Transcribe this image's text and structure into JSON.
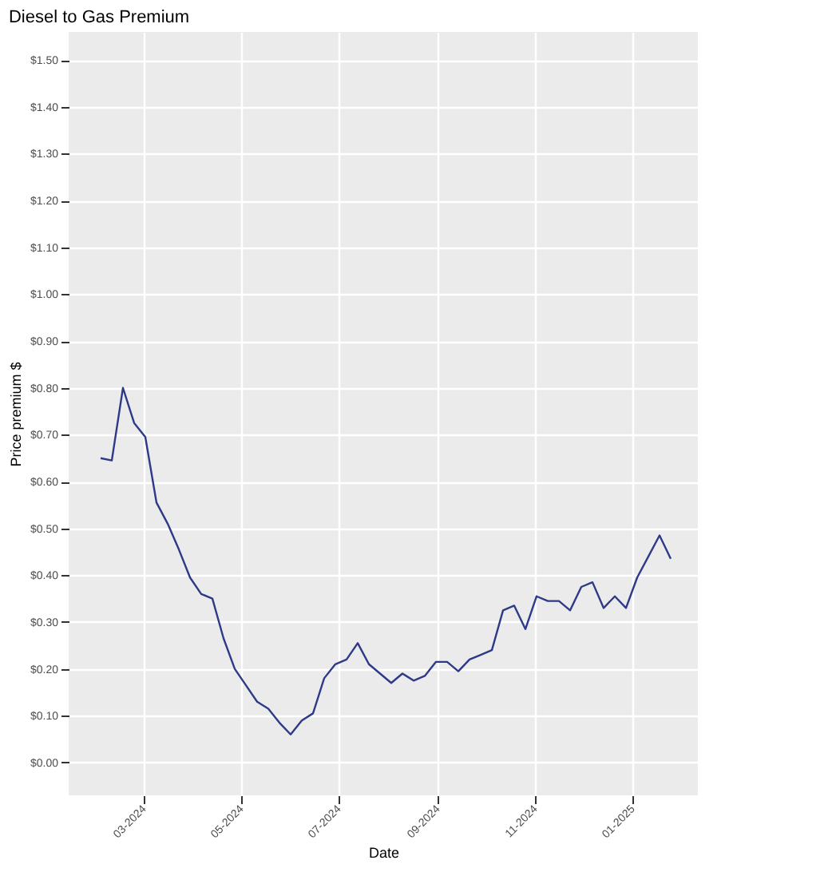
{
  "chart_data": {
    "type": "line",
    "title": "Diesel to Gas Premium",
    "xlabel": "Date",
    "ylabel": "Price premium $",
    "x": [
      "2024-02-03",
      "2024-02-10",
      "2024-02-17",
      "2024-02-24",
      "2024-03-02",
      "2024-03-09",
      "2024-03-16",
      "2024-03-23",
      "2024-03-30",
      "2024-04-06",
      "2024-04-13",
      "2024-04-20",
      "2024-04-27",
      "2024-05-04",
      "2024-05-11",
      "2024-05-18",
      "2024-05-25",
      "2024-06-01",
      "2024-06-08",
      "2024-06-15",
      "2024-06-22",
      "2024-06-29",
      "2024-07-06",
      "2024-07-13",
      "2024-07-20",
      "2024-07-27",
      "2024-08-03",
      "2024-08-10",
      "2024-08-17",
      "2024-08-24",
      "2024-08-31",
      "2024-09-07",
      "2024-09-14",
      "2024-09-21",
      "2024-09-28",
      "2024-10-05",
      "2024-10-12",
      "2024-10-19",
      "2024-10-26",
      "2024-11-02",
      "2024-11-09",
      "2024-11-16",
      "2024-11-23",
      "2024-11-30",
      "2024-12-07",
      "2024-12-14",
      "2024-12-21",
      "2024-12-28",
      "2025-01-04",
      "2025-01-11",
      "2025-01-18",
      "2025-01-25"
    ],
    "series": [
      {
        "color": "#2e3a87",
        "values": [
          0.65,
          0.645,
          0.8,
          0.725,
          0.695,
          0.555,
          0.51,
          0.455,
          0.395,
          0.36,
          0.35,
          0.265,
          0.2,
          0.165,
          0.13,
          0.115,
          0.085,
          0.06,
          0.09,
          0.105,
          0.18,
          0.21,
          0.22,
          0.255,
          0.21,
          0.19,
          0.17,
          0.19,
          0.175,
          0.185,
          0.215,
          0.215,
          0.195,
          0.22,
          0.23,
          0.24,
          0.325,
          0.335,
          0.285,
          0.355,
          0.345,
          0.345,
          0.325,
          0.375,
          0.385,
          0.33,
          0.355,
          0.33,
          0.395,
          0.44,
          0.485,
          0.435
        ]
      }
    ],
    "xlim": [
      "2024-01-14",
      "2025-02-11"
    ],
    "xticks": [
      {
        "value": "2024-03-01",
        "label": "03-2024"
      },
      {
        "value": "2024-05-01",
        "label": "05-2024"
      },
      {
        "value": "2024-07-01",
        "label": "07-2024"
      },
      {
        "value": "2024-09-01",
        "label": "09-2024"
      },
      {
        "value": "2024-11-01",
        "label": "11-2024"
      },
      {
        "value": "2025-01-01",
        "label": "01-2025"
      }
    ],
    "ylim": [
      -0.07,
      1.56
    ],
    "yticks": [
      {
        "value": 0,
        "label": "$0.00"
      },
      {
        "value": 0.1,
        "label": "$0.10"
      },
      {
        "value": 0.2,
        "label": "$0.20"
      },
      {
        "value": 0.3,
        "label": "$0.30"
      },
      {
        "value": 0.4,
        "label": "$0.40"
      },
      {
        "value": 0.5,
        "label": "$0.50"
      },
      {
        "value": 0.6,
        "label": "$0.60"
      },
      {
        "value": 0.7,
        "label": "$0.70"
      },
      {
        "value": 0.8,
        "label": "$0.80"
      },
      {
        "value": 0.9,
        "label": "$0.90"
      },
      {
        "value": 1.0,
        "label": "$1.00"
      },
      {
        "value": 1.1,
        "label": "$1.10"
      },
      {
        "value": 1.2,
        "label": "$1.20"
      },
      {
        "value": 1.3,
        "label": "$1.30"
      },
      {
        "value": 1.4,
        "label": "$1.40"
      },
      {
        "value": 1.5,
        "label": "$1.50"
      }
    ],
    "grid": true,
    "marker": "none",
    "line_style": "solid"
  }
}
